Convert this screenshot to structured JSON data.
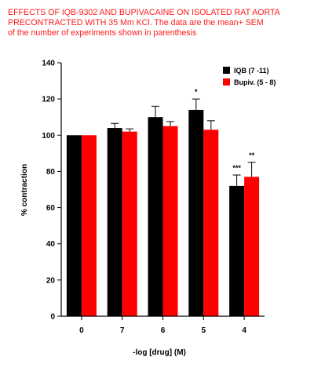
{
  "caption": {
    "line1": "EFFECTS OF IQB-9302 AND BUPIVACAINE ON ISOLATED RAT AORTA",
    "line2": "PRECONTRACTED WITH 35 Mm KCl. The data are the mean+ SEM",
    "line3": "of the number of experiments shown in parenthesis"
  },
  "chart_data": {
    "type": "bar",
    "xlabel": "-log [drug] (M)",
    "ylabel": "% contraction",
    "ylim": [
      0,
      140
    ],
    "yticks": [
      "0",
      "20",
      "40",
      "60",
      "80",
      "100",
      "120",
      "140"
    ],
    "categories": [
      "0",
      "7",
      "6",
      "5",
      "4"
    ],
    "legend_position": "top-right",
    "series": [
      {
        "name": "IQB (7 -11)",
        "color": "#000000",
        "values": [
          100,
          104,
          110,
          114,
          72
        ],
        "errors": [
          0,
          2.5,
          6,
          6,
          6
        ]
      },
      {
        "name": "Bupiv. (5 - 8)",
        "color": "#ff0000",
        "values": [
          100,
          102,
          105,
          103,
          77
        ],
        "errors": [
          0,
          1.5,
          2.5,
          5,
          8
        ]
      }
    ],
    "annotations": [
      {
        "category": "5",
        "series": "IQB (7 -11)",
        "text": "*"
      },
      {
        "category": "4",
        "series": "IQB (7 -11)",
        "text": "***"
      },
      {
        "category": "4",
        "series": "Bupiv. (5 - 8)",
        "text": "**"
      }
    ]
  }
}
